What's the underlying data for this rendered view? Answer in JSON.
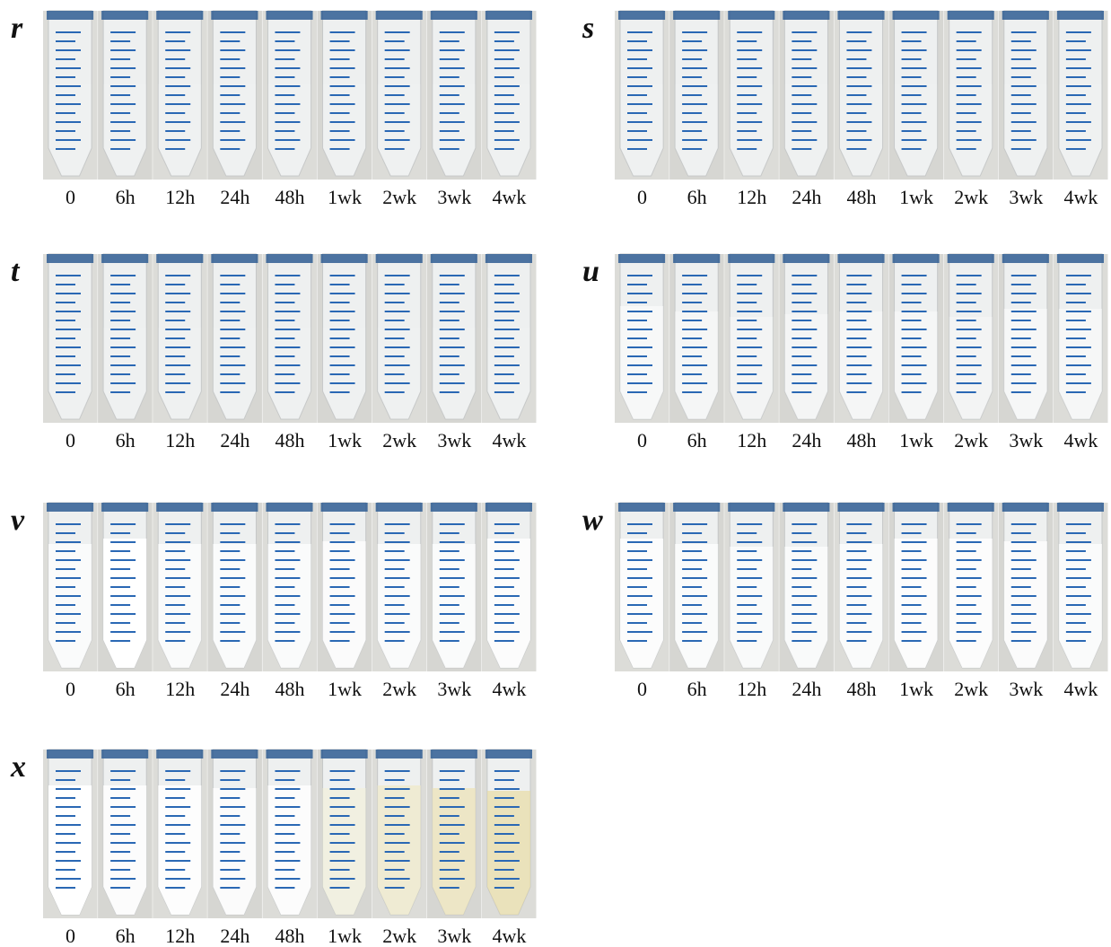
{
  "panels": [
    {
      "label": "r",
      "times": [
        "0",
        "6h",
        "12h",
        "24h",
        "48h",
        "1wk",
        "2wk",
        "3wk",
        "4wk"
      ]
    },
    {
      "label": "s",
      "times": [
        "0",
        "6h",
        "12h",
        "24h",
        "48h",
        "1wk",
        "2wk",
        "3wk",
        "4wk"
      ]
    },
    {
      "label": "t",
      "times": [
        "0",
        "6h",
        "12h",
        "24h",
        "48h",
        "1wk",
        "2wk",
        "3wk",
        "4wk"
      ]
    },
    {
      "label": "u",
      "times": [
        "0",
        "6h",
        "12h",
        "24h",
        "48h",
        "1wk",
        "2wk",
        "3wk",
        "4wk"
      ]
    },
    {
      "label": "v",
      "times": [
        "0",
        "6h",
        "12h",
        "24h",
        "48h",
        "1wk",
        "2wk",
        "3wk",
        "4wk"
      ]
    },
    {
      "label": "w",
      "times": [
        "0",
        "6h",
        "12h",
        "24h",
        "48h",
        "1wk",
        "2wk",
        "3wk",
        "4wk"
      ]
    },
    {
      "label": "x",
      "times": [
        "0",
        "6h",
        "12h",
        "24h",
        "48h",
        "1wk",
        "2wk",
        "3wk",
        "4wk"
      ]
    }
  ]
}
